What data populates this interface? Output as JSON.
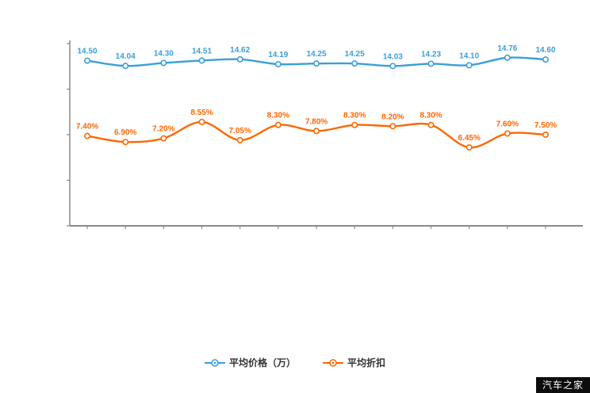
{
  "chart_data": {
    "type": "line",
    "point_count": 13,
    "grid": false,
    "legend_position": "bottom",
    "left_axis": {
      "min": 0,
      "max": 16
    },
    "right_axis": {
      "min": 0,
      "max": 15
    },
    "series": [
      {
        "name": "平均价格（万）",
        "axis": "left",
        "color": "#3a9fd9",
        "values": [
          14.5,
          14.04,
          14.3,
          14.51,
          14.62,
          14.19,
          14.25,
          14.25,
          14.03,
          14.23,
          14.1,
          14.76,
          14.6
        ],
        "labels": [
          "14.50",
          "14.04",
          "14.30",
          "14.51",
          "14.62",
          "14.19",
          "14.25",
          "14.25",
          "14.03",
          "14.23",
          "14.10",
          "14.76",
          "14.60"
        ]
      },
      {
        "name": "平均折扣",
        "axis": "right",
        "color": "#ff6600",
        "values": [
          7.4,
          6.9,
          7.2,
          8.55,
          7.05,
          8.3,
          7.8,
          8.3,
          8.2,
          8.3,
          6.45,
          7.6,
          7.5
        ],
        "labels": [
          "7.40%",
          "6.90%",
          "7.20%",
          "8.55%",
          "7.05%",
          "8.30%",
          "7.80%",
          "8.30%",
          "8.20%",
          "8.30%",
          "6.45%",
          "7.60%",
          "7.50%"
        ]
      }
    ]
  },
  "watermark": {
    "text": "汽车之家"
  }
}
